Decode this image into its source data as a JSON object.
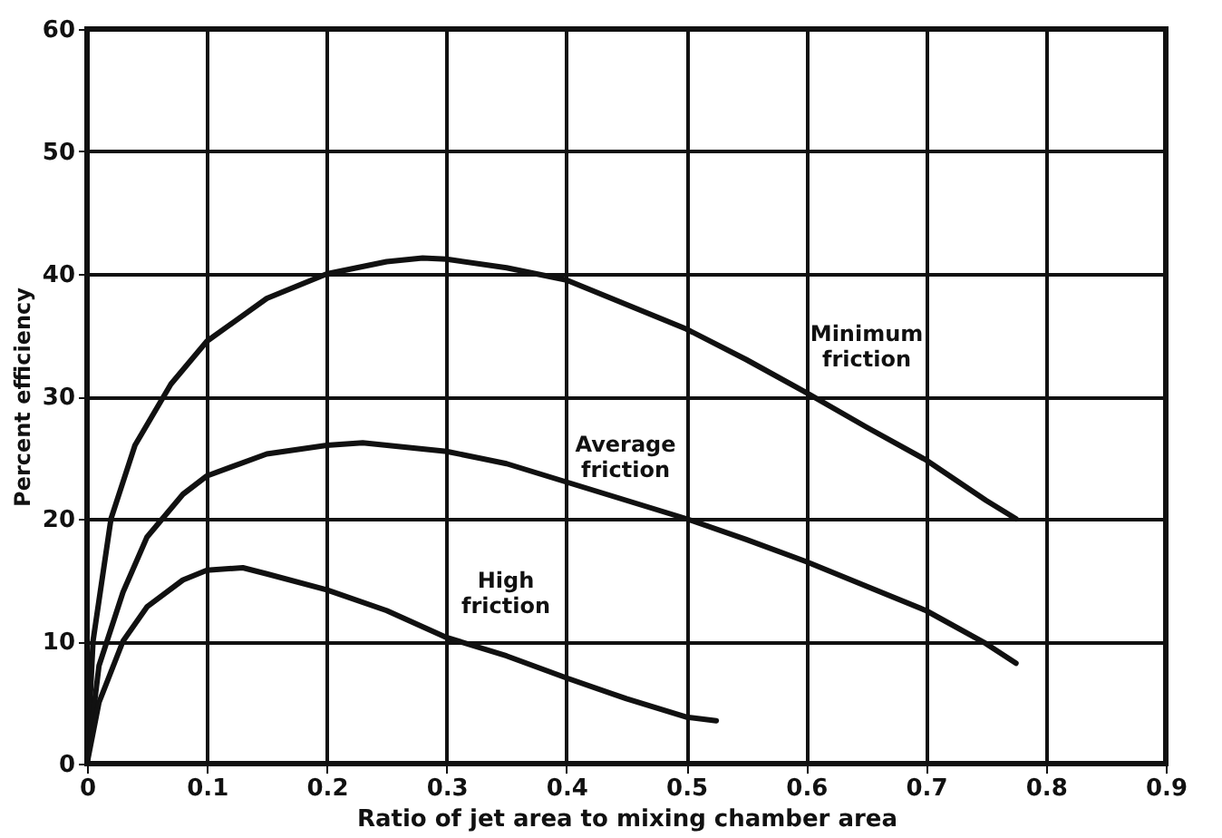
{
  "chart_data": {
    "type": "line",
    "xlabel": "Ratio of jet area to mixing chamber area",
    "ylabel": "Percent efficiency",
    "xlim": [
      0,
      0.9
    ],
    "xticks": [
      0,
      0.1,
      0.2,
      0.3,
      0.4,
      0.5,
      0.6,
      0.7,
      0.8,
      0.9
    ],
    "ylim": [
      0,
      60
    ],
    "yticks": [
      0,
      10,
      20,
      30,
      40,
      50,
      60
    ],
    "grid": true,
    "marker": "none",
    "line_style": "solid",
    "series": [
      {
        "color": "#111111",
        "x": [
          0,
          0.005,
          0.02,
          0.04,
          0.07,
          0.1,
          0.15,
          0.2,
          0.25,
          0.28,
          0.3,
          0.35,
          0.4,
          0.45,
          0.5,
          0.55,
          0.6,
          0.65,
          0.7,
          0.75,
          0.775
        ],
        "values": [
          0,
          10,
          20,
          26,
          31,
          34.5,
          38,
          40,
          41,
          41.3,
          41.2,
          40.5,
          39.5,
          37.5,
          35.5,
          33,
          30.3,
          27.5,
          24.8,
          21.5,
          20
        ]
      },
      {
        "color": "#111111",
        "x": [
          0,
          0.01,
          0.03,
          0.05,
          0.08,
          0.1,
          0.15,
          0.2,
          0.23,
          0.3,
          0.35,
          0.4,
          0.45,
          0.5,
          0.55,
          0.6,
          0.65,
          0.7,
          0.75,
          0.775
        ],
        "values": [
          0,
          8,
          14,
          18.5,
          22,
          23.5,
          25.3,
          26,
          26.2,
          25.5,
          24.5,
          23,
          21.5,
          20,
          18.3,
          16.5,
          14.5,
          12.5,
          9.8,
          8.2
        ]
      },
      {
        "color": "#111111",
        "x": [
          0,
          0.01,
          0.03,
          0.05,
          0.08,
          0.1,
          0.13,
          0.15,
          0.2,
          0.25,
          0.3,
          0.35,
          0.4,
          0.45,
          0.5,
          0.525
        ],
        "values": [
          0,
          5,
          10,
          12.8,
          15,
          15.8,
          16,
          15.5,
          14.2,
          12.5,
          10.3,
          8.8,
          7,
          5.3,
          3.8,
          3.5
        ]
      }
    ],
    "annotations": [
      "Minimum friction",
      "Average friction",
      "High friction"
    ]
  }
}
